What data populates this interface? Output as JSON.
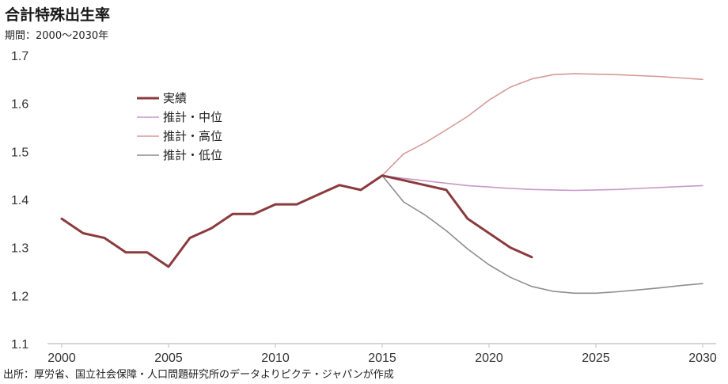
{
  "title": "合計特殊出生率",
  "subtitle": "期間：2000～2030年",
  "source": "出所：厚労省、国立社会保障・人口問題研究所のデータよりピクテ・ジャパンが作成",
  "chart_data": {
    "type": "line",
    "title": "合計特殊出生率",
    "xlabel": "",
    "ylabel": "",
    "xlim": [
      2000,
      2030
    ],
    "ylim": [
      1.1,
      1.7
    ],
    "x_ticks": [
      2000,
      2005,
      2010,
      2015,
      2020,
      2025,
      2030
    ],
    "y_ticks": [
      1.1,
      1.2,
      1.3,
      1.4,
      1.5,
      1.6,
      1.7
    ],
    "grid": false,
    "legend_position": "upper-left",
    "series": [
      {
        "name": "実績",
        "color": "#8B3A3E",
        "width": 3,
        "x": [
          2000,
          2001,
          2002,
          2003,
          2004,
          2005,
          2006,
          2007,
          2008,
          2009,
          2010,
          2011,
          2012,
          2013,
          2014,
          2015,
          2016,
          2017,
          2018,
          2019,
          2020,
          2021,
          2022
        ],
        "values": [
          1.36,
          1.33,
          1.32,
          1.29,
          1.29,
          1.26,
          1.32,
          1.34,
          1.37,
          1.37,
          1.39,
          1.39,
          1.41,
          1.43,
          1.42,
          1.45,
          1.44,
          1.43,
          1.42,
          1.36,
          1.33,
          1.3,
          1.28
        ]
      },
      {
        "name": "推計・中位",
        "color": "#C799C7",
        "width": 1.6,
        "x": [
          2015,
          2016,
          2017,
          2018,
          2019,
          2020,
          2021,
          2022,
          2023,
          2024,
          2025,
          2026,
          2027,
          2028,
          2029,
          2030
        ],
        "values": [
          1.45,
          1.444,
          1.439,
          1.434,
          1.429,
          1.426,
          1.423,
          1.421,
          1.42,
          1.419,
          1.42,
          1.421,
          1.423,
          1.425,
          1.427,
          1.429
        ]
      },
      {
        "name": "推計・高位",
        "color": "#D49A98",
        "width": 1.6,
        "x": [
          2015,
          2016,
          2017,
          2018,
          2019,
          2020,
          2021,
          2022,
          2023,
          2024,
          2025,
          2026,
          2027,
          2028,
          2029,
          2030
        ],
        "values": [
          1.45,
          1.495,
          1.518,
          1.545,
          1.573,
          1.607,
          1.634,
          1.651,
          1.66,
          1.662,
          1.661,
          1.66,
          1.658,
          1.656,
          1.653,
          1.65
        ]
      },
      {
        "name": "推計・低位",
        "color": "#8E8E8E",
        "width": 1.6,
        "x": [
          2015,
          2016,
          2017,
          2018,
          2019,
          2020,
          2021,
          2022,
          2023,
          2024,
          2025,
          2026,
          2027,
          2028,
          2029,
          2030
        ],
        "values": [
          1.45,
          1.395,
          1.368,
          1.335,
          1.297,
          1.264,
          1.238,
          1.219,
          1.209,
          1.205,
          1.205,
          1.208,
          1.212,
          1.216,
          1.221,
          1.225
        ]
      }
    ]
  }
}
